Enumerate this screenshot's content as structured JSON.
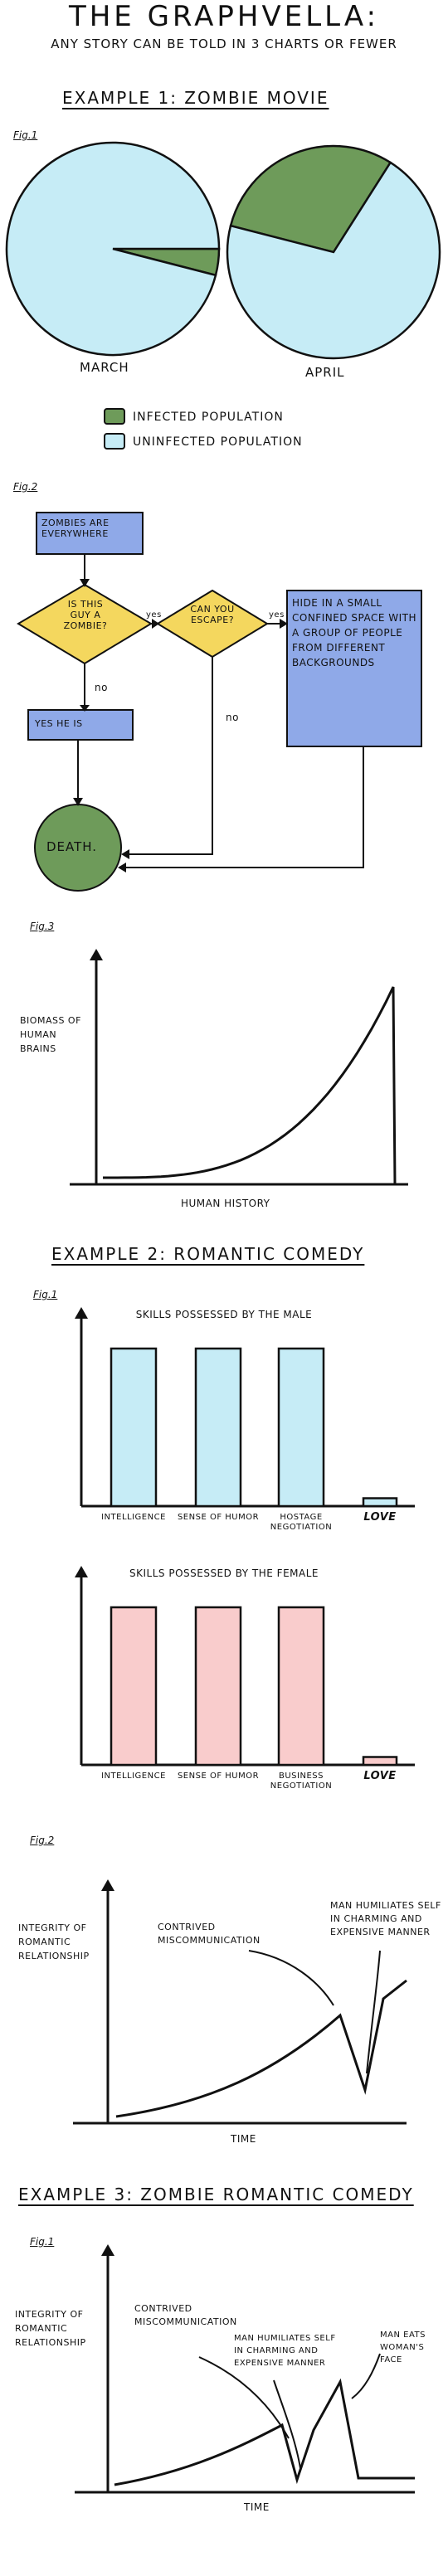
{
  "header": {
    "title": "THE GRAPHVELLA:",
    "subtitle": "ANY STORY CAN BE TOLD IN 3 CHARTS OR FEWER"
  },
  "example1": {
    "heading": "EXAMPLE 1: ZOMBIE MOVIE",
    "fig1": {
      "label": "Fig.1",
      "chart_data": {
        "type": "pie",
        "charts": [
          {
            "caption": "MARCH",
            "slices": [
              {
                "name": "INFECTED POPULATION",
                "value": 4
              },
              {
                "name": "UNINFECTED POPULATION",
                "value": 96
              }
            ]
          },
          {
            "caption": "APRIL",
            "slices": [
              {
                "name": "INFECTED POPULATION",
                "value": 30
              },
              {
                "name": "UNINFECTED POPULATION",
                "value": 70
              }
            ]
          }
        ],
        "legend": [
          {
            "name": "INFECTED POPULATION",
            "color": "#6e9b5a"
          },
          {
            "name": "UNINFECTED POPULATION",
            "color": "#c6ecf6"
          }
        ]
      }
    },
    "fig2": {
      "label": "Fig.2",
      "nodes": {
        "start": "ZOMBIES ARE EVERYWHERE",
        "q1": "IS THIS GUY A ZOMBIE?",
        "q2": "CAN YOU ESCAPE?",
        "hide": "HIDE IN A SMALL CONFINED SPACE WITH A GROUP OF PEOPLE FROM DIFFERENT BACKGROUNDS",
        "yes_he_is": "YES HE IS",
        "death": "DEATH."
      },
      "edges": {
        "yes1": "yes",
        "yes2": "yes",
        "no1": "no",
        "no2": "no"
      },
      "colors": {
        "box": "#8fa9e8",
        "diamond": "#f4d75e",
        "circle": "#6e9b5a"
      }
    },
    "fig3": {
      "label": "Fig.3",
      "chart_data": {
        "type": "line",
        "ylabel": "BIOMASS OF HUMAN BRAINS",
        "xlabel": "HUMAN HISTORY",
        "shape": "exponential rise then drop to zero"
      }
    }
  },
  "example2": {
    "heading": "EXAMPLE 2: ROMANTIC COMEDY",
    "fig1": {
      "label": "Fig.1",
      "chart_data": [
        {
          "type": "bar",
          "title": "SKILLS POSSESSED BY THE MALE",
          "categories": [
            "INTELLIGENCE",
            "SENSE OF HUMOR",
            "HOSTAGE NEGOTIATION",
            "LOVE"
          ],
          "values": [
            100,
            100,
            100,
            5
          ],
          "color": "#c6ecf6"
        },
        {
          "type": "bar",
          "title": "SKILLS POSSESSED BY THE FEMALE",
          "categories": [
            "INTELLIGENCE",
            "SENSE OF HUMOR",
            "BUSINESS NEGOTIATION",
            "LOVE"
          ],
          "values": [
            100,
            100,
            100,
            5
          ],
          "color": "#f9cccc"
        }
      ]
    },
    "fig2": {
      "label": "Fig.2",
      "chart_data": {
        "type": "line",
        "ylabel": "INTEGRITY OF ROMANTIC RELATIONSHIP",
        "xlabel": "TIME",
        "annotations": [
          "CONTRIVED MISCOMMUNICATION",
          "MAN HUMILIATES SELF IN CHARMING AND EXPENSIVE MANNER"
        ]
      }
    }
  },
  "example3": {
    "heading": "EXAMPLE 3: ZOMBIE ROMANTIC COMEDY",
    "fig1": {
      "label": "Fig.1",
      "chart_data": {
        "type": "line",
        "ylabel": "INTEGRITY OF ROMANTIC RELATIONSHIP",
        "xlabel": "TIME",
        "annotations": [
          "CONTRIVED MISCOMMUNICATION",
          "MAN HUMILIATES SELF IN CHARMING AND EXPENSIVE MANNER",
          "MAN EATS WOMAN'S FACE"
        ]
      }
    }
  }
}
